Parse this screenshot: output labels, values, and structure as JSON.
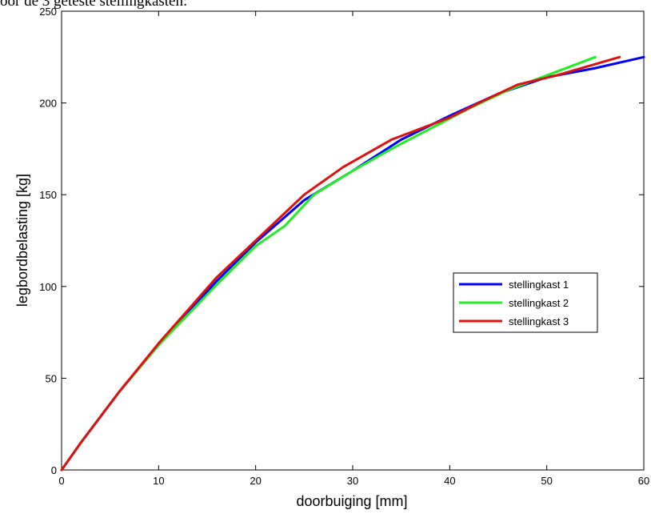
{
  "caption_top": "oor de 3 geteste stellingkasten:",
  "chart_data": {
    "type": "line",
    "title": "",
    "xlabel": "doorbuiging [mm]",
    "ylabel": "legbordbelasting [kg]",
    "xlim": [
      0,
      60
    ],
    "ylim": [
      0,
      250
    ],
    "xticks": [
      "0",
      "10",
      "20",
      "30",
      "40",
      "50",
      "60"
    ],
    "yticks": [
      "0",
      "50",
      "100",
      "150",
      "200",
      "250"
    ],
    "grid": false,
    "legend_position": "right-middle",
    "series": [
      {
        "name": "stellingkast 1",
        "color": "#0000ff",
        "x": [
          0,
          2,
          6,
          10,
          16,
          20,
          25,
          30,
          35,
          40,
          45,
          50,
          55,
          60
        ],
        "y": [
          0,
          15,
          43,
          68,
          103,
          124,
          147,
          163,
          180,
          193,
          205,
          214,
          219,
          225
        ]
      },
      {
        "name": "stellingkast 2",
        "color": "#22ee22",
        "x": [
          0,
          2,
          6,
          10,
          16,
          20,
          23,
          26,
          30,
          34,
          38,
          42,
          46,
          50,
          55
        ],
        "y": [
          0,
          15,
          43,
          68,
          101,
          122,
          133,
          150,
          163,
          175,
          186,
          197,
          207,
          215,
          225
        ]
      },
      {
        "name": "stellingkast 3",
        "color": "#dd1111",
        "x": [
          0,
          2,
          6,
          10,
          16,
          20,
          25,
          29,
          34,
          37,
          40,
          43,
          47,
          51,
          57.5
        ],
        "y": [
          0,
          15,
          43,
          69,
          105,
          125,
          150,
          165,
          180,
          186,
          192,
          200,
          210,
          215,
          225
        ]
      }
    ]
  }
}
